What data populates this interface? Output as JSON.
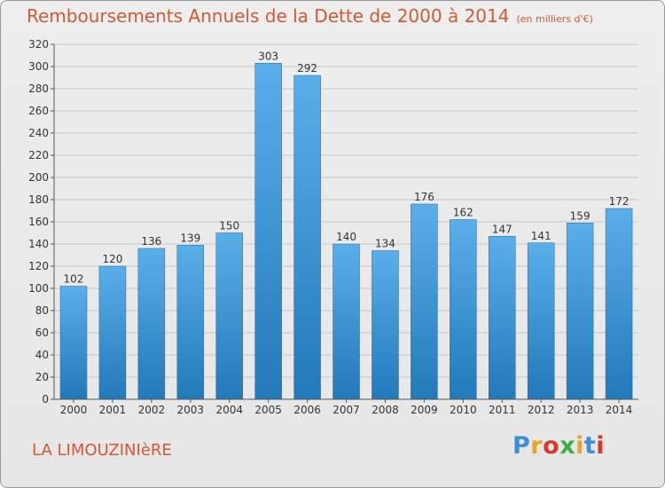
{
  "header": {
    "title": "Remboursements Annuels de la Dette de 2000 à 2014",
    "subtitle": "(en milliers d'€)"
  },
  "footer": {
    "commune": "LA LIMOUZINIèRE",
    "logo": "Proxiti"
  },
  "colors": {
    "title": "#d05a35",
    "bar_top": "#5aaeea",
    "bar_bottom": "#2379b9",
    "grid": "#c8c8c8"
  },
  "chart_data": {
    "type": "bar",
    "title": "Remboursements Annuels de la Dette de 2000 à 2014",
    "subtitle": "(en milliers d'€)",
    "categories": [
      "2000",
      "2001",
      "2002",
      "2003",
      "2004",
      "2005",
      "2006",
      "2007",
      "2008",
      "2009",
      "2010",
      "2011",
      "2012",
      "2013",
      "2014"
    ],
    "values": [
      102,
      120,
      136,
      139,
      150,
      303,
      292,
      140,
      134,
      176,
      162,
      147,
      141,
      159,
      172
    ],
    "ylim": [
      0,
      320
    ],
    "yticks": [
      0,
      20,
      40,
      60,
      80,
      100,
      120,
      140,
      160,
      180,
      200,
      220,
      240,
      260,
      280,
      300,
      320
    ],
    "grid": true,
    "data_labels": true
  }
}
